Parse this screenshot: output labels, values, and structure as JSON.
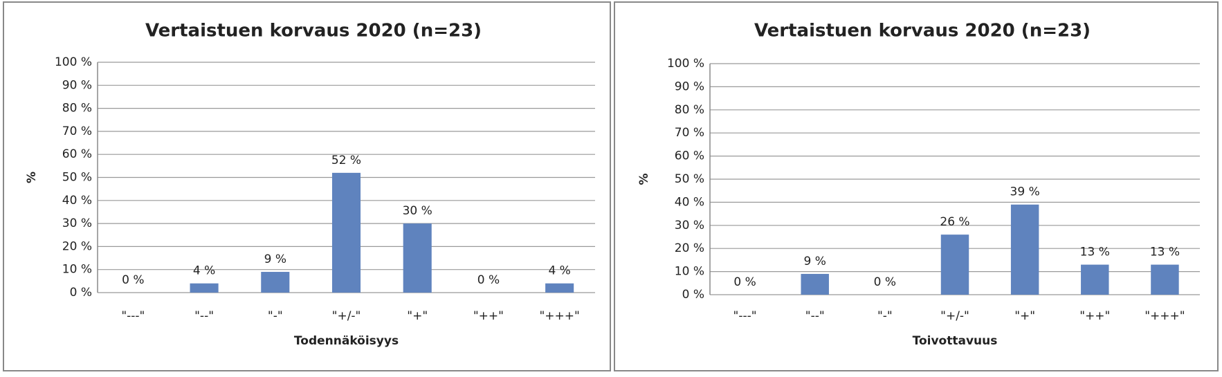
{
  "chart_data": [
    {
      "type": "bar",
      "title": "Vertaistuen korvaus 2020 (n=23)",
      "y_label": "%",
      "x_label": "Todennäköisyys",
      "categories": [
        "\"---\"",
        "\"--\"",
        "\"-\"",
        "\"+/-\"",
        "\"+\"",
        "\"++\"",
        "\"+++\""
      ],
      "values": [
        0,
        4,
        9,
        52,
        30,
        0,
        4
      ],
      "value_labels": [
        "0 %",
        "4 %",
        "9 %",
        "52 %",
        "30 %",
        "0 %",
        "4 %"
      ],
      "color": "#5f83be",
      "ylim": [
        0,
        100
      ],
      "yticks": [
        {
          "value": 0,
          "label": "0 %"
        },
        {
          "value": 10,
          "label": "10 %"
        },
        {
          "value": 20,
          "label": "20 %"
        },
        {
          "value": 30,
          "label": "30 %"
        },
        {
          "value": 40,
          "label": "40 %"
        },
        {
          "value": 50,
          "label": "50 %"
        },
        {
          "value": 60,
          "label": "60 %"
        },
        {
          "value": 70,
          "label": "70 %"
        },
        {
          "value": 80,
          "label": "80 %"
        },
        {
          "value": 90,
          "label": "90 %"
        },
        {
          "value": 100,
          "label": "100 %"
        }
      ],
      "grid": true
    },
    {
      "type": "bar",
      "title": "Vertaistuen korvaus 2020 (n=23)",
      "y_label": "%",
      "x_label": "Toivottavuus",
      "categories": [
        "\"---\"",
        "\"--\"",
        "\"-\"",
        "\"+/-\"",
        "\"+\"",
        "\"++\"",
        "\"+++\""
      ],
      "values": [
        0,
        9,
        0,
        26,
        39,
        13,
        13
      ],
      "value_labels": [
        "0 %",
        "9 %",
        "0 %",
        "26 %",
        "39 %",
        "13 %",
        "13 %"
      ],
      "color": "#5f83be",
      "ylim": [
        0,
        100
      ],
      "yticks": [
        {
          "value": 0,
          "label": "0 %"
        },
        {
          "value": 10,
          "label": "10 %"
        },
        {
          "value": 20,
          "label": "20 %"
        },
        {
          "value": 30,
          "label": "30 %"
        },
        {
          "value": 40,
          "label": "40 %"
        },
        {
          "value": 50,
          "label": "50 %"
        },
        {
          "value": 60,
          "label": "60 %"
        },
        {
          "value": 70,
          "label": "70 %"
        },
        {
          "value": 80,
          "label": "80 %"
        },
        {
          "value": 90,
          "label": "90 %"
        },
        {
          "value": 100,
          "label": "100 %"
        }
      ],
      "grid": true
    }
  ]
}
